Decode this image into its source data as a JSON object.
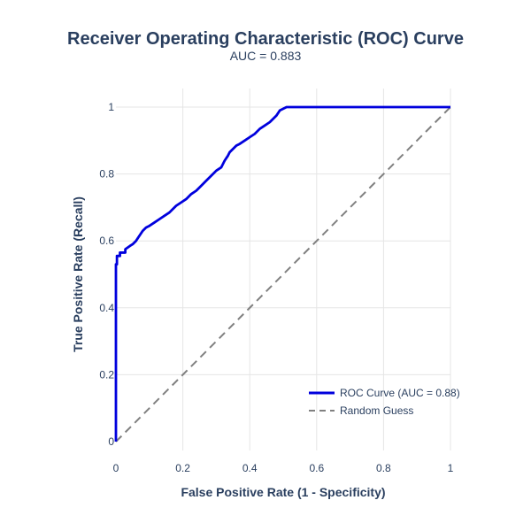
{
  "chart_data": {
    "type": "line",
    "title": "Receiver Operating Characteristic (ROC) Curve",
    "subtitle": "AUC = 0.883",
    "xlabel": "False Positive Rate (1 - Specificity)",
    "ylabel": "True Positive Rate (Recall)",
    "xlim": [
      0,
      1
    ],
    "ylim": [
      0,
      1
    ],
    "x_ticks": [
      0,
      0.2,
      0.4,
      0.6,
      0.8,
      1
    ],
    "x_tick_labels": [
      "0",
      "0.2",
      "0.4",
      "0.6",
      "0.8",
      "1"
    ],
    "y_ticks": [
      0,
      0.2,
      0.4,
      0.6,
      0.8,
      1
    ],
    "y_tick_labels": [
      "0",
      "0.2",
      "0.4",
      "0.6",
      "0.8",
      "1"
    ],
    "grid": true,
    "legend_position": "bottom-right",
    "series": [
      {
        "name": "ROC Curve (AUC = 0.88)",
        "color": "#0000dd",
        "line_style": "solid",
        "x": [
          0,
          0,
          0.003,
          0.003,
          0.012,
          0.012,
          0.028,
          0.028,
          0.042,
          0.05,
          0.06,
          0.07,
          0.08,
          0.09,
          0.1,
          0.115,
          0.13,
          0.145,
          0.16,
          0.17,
          0.18,
          0.195,
          0.21,
          0.225,
          0.24,
          0.255,
          0.27,
          0.285,
          0.3,
          0.315,
          0.325,
          0.335,
          0.34,
          0.35,
          0.36,
          0.37,
          0.385,
          0.4,
          0.415,
          0.43,
          0.445,
          0.46,
          0.47,
          0.48,
          0.49,
          0.5,
          0.51,
          1
        ],
        "y": [
          0,
          0.53,
          0.53,
          0.555,
          0.555,
          0.565,
          0.565,
          0.575,
          0.585,
          0.59,
          0.6,
          0.615,
          0.63,
          0.64,
          0.645,
          0.655,
          0.665,
          0.675,
          0.685,
          0.695,
          0.705,
          0.715,
          0.725,
          0.74,
          0.75,
          0.765,
          0.78,
          0.795,
          0.81,
          0.82,
          0.84,
          0.855,
          0.865,
          0.875,
          0.885,
          0.89,
          0.9,
          0.91,
          0.92,
          0.935,
          0.945,
          0.955,
          0.965,
          0.975,
          0.99,
          0.995,
          1,
          1
        ]
      },
      {
        "name": "Random Guess",
        "color": "#808080",
        "line_style": "dash",
        "x": [
          0,
          1
        ],
        "y": [
          0,
          1
        ]
      }
    ]
  }
}
